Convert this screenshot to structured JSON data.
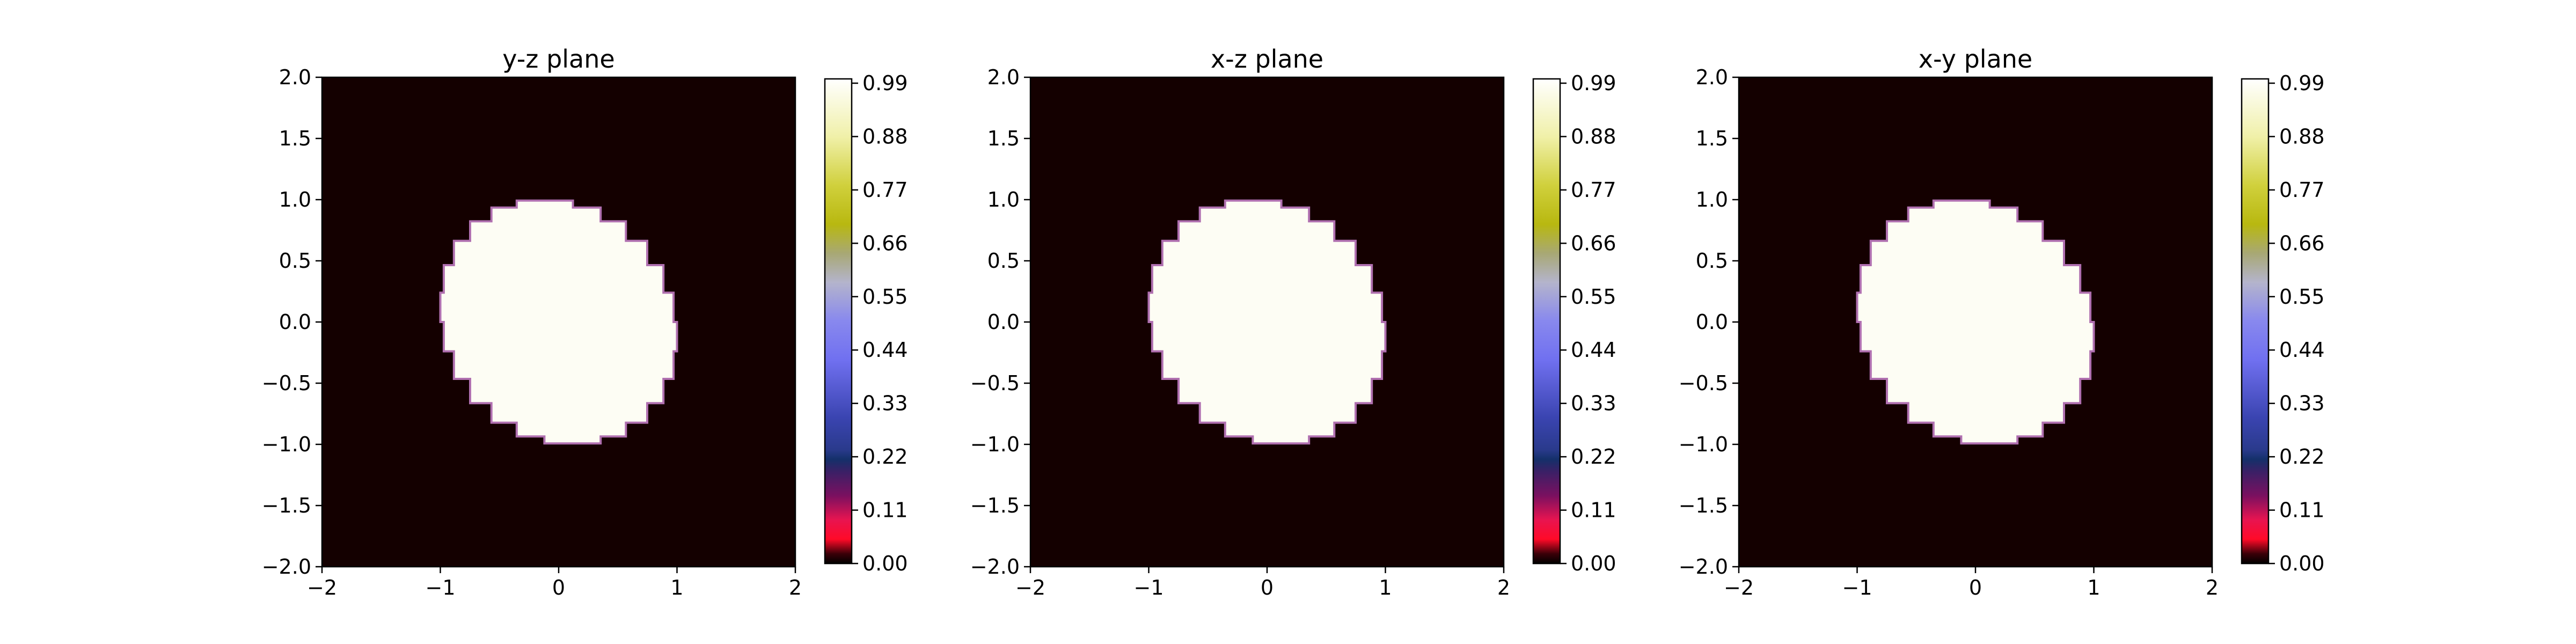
{
  "colors": {
    "background_fill": "#140000",
    "blob_fill": "#fdfdf4",
    "blob_edge": "#b070b0"
  },
  "colormap": {
    "name": "gist_stern-like",
    "stops": [
      {
        "v": 0.0,
        "color": "#000000"
      },
      {
        "v": 0.02,
        "color": "#3a0008"
      },
      {
        "v": 0.05,
        "color": "#ff0a28"
      },
      {
        "v": 0.09,
        "color": "#e81450"
      },
      {
        "v": 0.14,
        "color": "#7a1060"
      },
      {
        "v": 0.19,
        "color": "#3a2066"
      },
      {
        "v": 0.215,
        "color": "#14306a"
      },
      {
        "v": 0.235,
        "color": "#2a3a8c"
      },
      {
        "v": 0.3,
        "color": "#3a44b0"
      },
      {
        "v": 0.42,
        "color": "#7070f0"
      },
      {
        "v": 0.5,
        "color": "#8888ee"
      },
      {
        "v": 0.58,
        "color": "#b4b4cc"
      },
      {
        "v": 0.64,
        "color": "#a8a874"
      },
      {
        "v": 0.7,
        "color": "#b8b810"
      },
      {
        "v": 0.78,
        "color": "#d0d03c"
      },
      {
        "v": 0.88,
        "color": "#f0f0a8"
      },
      {
        "v": 1.0,
        "color": "#ffffff"
      }
    ]
  },
  "chart_data": [
    {
      "type": "heatmap",
      "title": "y-z plane",
      "xlim": [
        -2,
        2
      ],
      "ylim": [
        -2,
        2
      ],
      "xticks": [
        -2,
        -1,
        0,
        1,
        2
      ],
      "yticks": [
        2.0,
        1.5,
        1.0,
        0.5,
        0.0,
        -0.5,
        -1.0,
        -1.5,
        -2.0
      ],
      "xtick_labels": [
        "−2",
        "−1",
        "0",
        "1",
        "2"
      ],
      "ytick_labels": [
        "2.0",
        "1.5",
        "1.0",
        "0.5",
        "0.0",
        "−0.5",
        "−1.0",
        "−1.5",
        "−2.0"
      ],
      "region": {
        "shape": "disk",
        "center": [
          0,
          0
        ],
        "radius": 1.0,
        "value_inside": 1.0,
        "value_outside": 0.0
      },
      "colorbar": {
        "ticks": [
          0.0,
          0.11,
          0.22,
          0.33,
          0.44,
          0.55,
          0.66,
          0.77,
          0.88,
          0.99
        ],
        "tick_labels": [
          "0.00",
          "0.11",
          "0.22",
          "0.33",
          "0.44",
          "0.55",
          "0.66",
          "0.77",
          "0.88",
          "0.99"
        ]
      }
    },
    {
      "type": "heatmap",
      "title": "x-z plane",
      "xlim": [
        -2,
        2
      ],
      "ylim": [
        -2,
        2
      ],
      "xticks": [
        -2,
        -1,
        0,
        1,
        2
      ],
      "yticks": [
        2.0,
        1.5,
        1.0,
        0.5,
        0.0,
        -0.5,
        -1.0,
        -1.5,
        -2.0
      ],
      "xtick_labels": [
        "−2",
        "−1",
        "0",
        "1",
        "2"
      ],
      "ytick_labels": [
        "2.0",
        "1.5",
        "1.0",
        "0.5",
        "0.0",
        "−0.5",
        "−1.0",
        "−1.5",
        "−2.0"
      ],
      "region": {
        "shape": "disk",
        "center": [
          0,
          0
        ],
        "radius": 1.0,
        "value_inside": 1.0,
        "value_outside": 0.0
      },
      "colorbar": {
        "ticks": [
          0.0,
          0.11,
          0.22,
          0.33,
          0.44,
          0.55,
          0.66,
          0.77,
          0.88,
          0.99
        ],
        "tick_labels": [
          "0.00",
          "0.11",
          "0.22",
          "0.33",
          "0.44",
          "0.55",
          "0.66",
          "0.77",
          "0.88",
          "0.99"
        ]
      }
    },
    {
      "type": "heatmap",
      "title": "x-y plane",
      "xlim": [
        -2,
        2
      ],
      "ylim": [
        -2,
        2
      ],
      "xticks": [
        -2,
        -1,
        0,
        1,
        2
      ],
      "yticks": [
        2.0,
        1.5,
        1.0,
        0.5,
        0.0,
        -0.5,
        -1.0,
        -1.5,
        -2.0
      ],
      "xtick_labels": [
        "−2",
        "−1",
        "0",
        "1",
        "2"
      ],
      "ytick_labels": [
        "2.0",
        "1.5",
        "1.0",
        "0.5",
        "0.0",
        "−0.5",
        "−1.0",
        "−1.5",
        "−2.0"
      ],
      "region": {
        "shape": "disk",
        "center": [
          0,
          0
        ],
        "radius": 1.0,
        "value_inside": 1.0,
        "value_outside": 0.0
      },
      "colorbar": {
        "ticks": [
          0.0,
          0.11,
          0.22,
          0.33,
          0.44,
          0.55,
          0.66,
          0.77,
          0.88,
          0.99
        ],
        "tick_labels": [
          "0.00",
          "0.11",
          "0.22",
          "0.33",
          "0.44",
          "0.55",
          "0.66",
          "0.77",
          "0.88",
          "0.99"
        ]
      }
    }
  ]
}
